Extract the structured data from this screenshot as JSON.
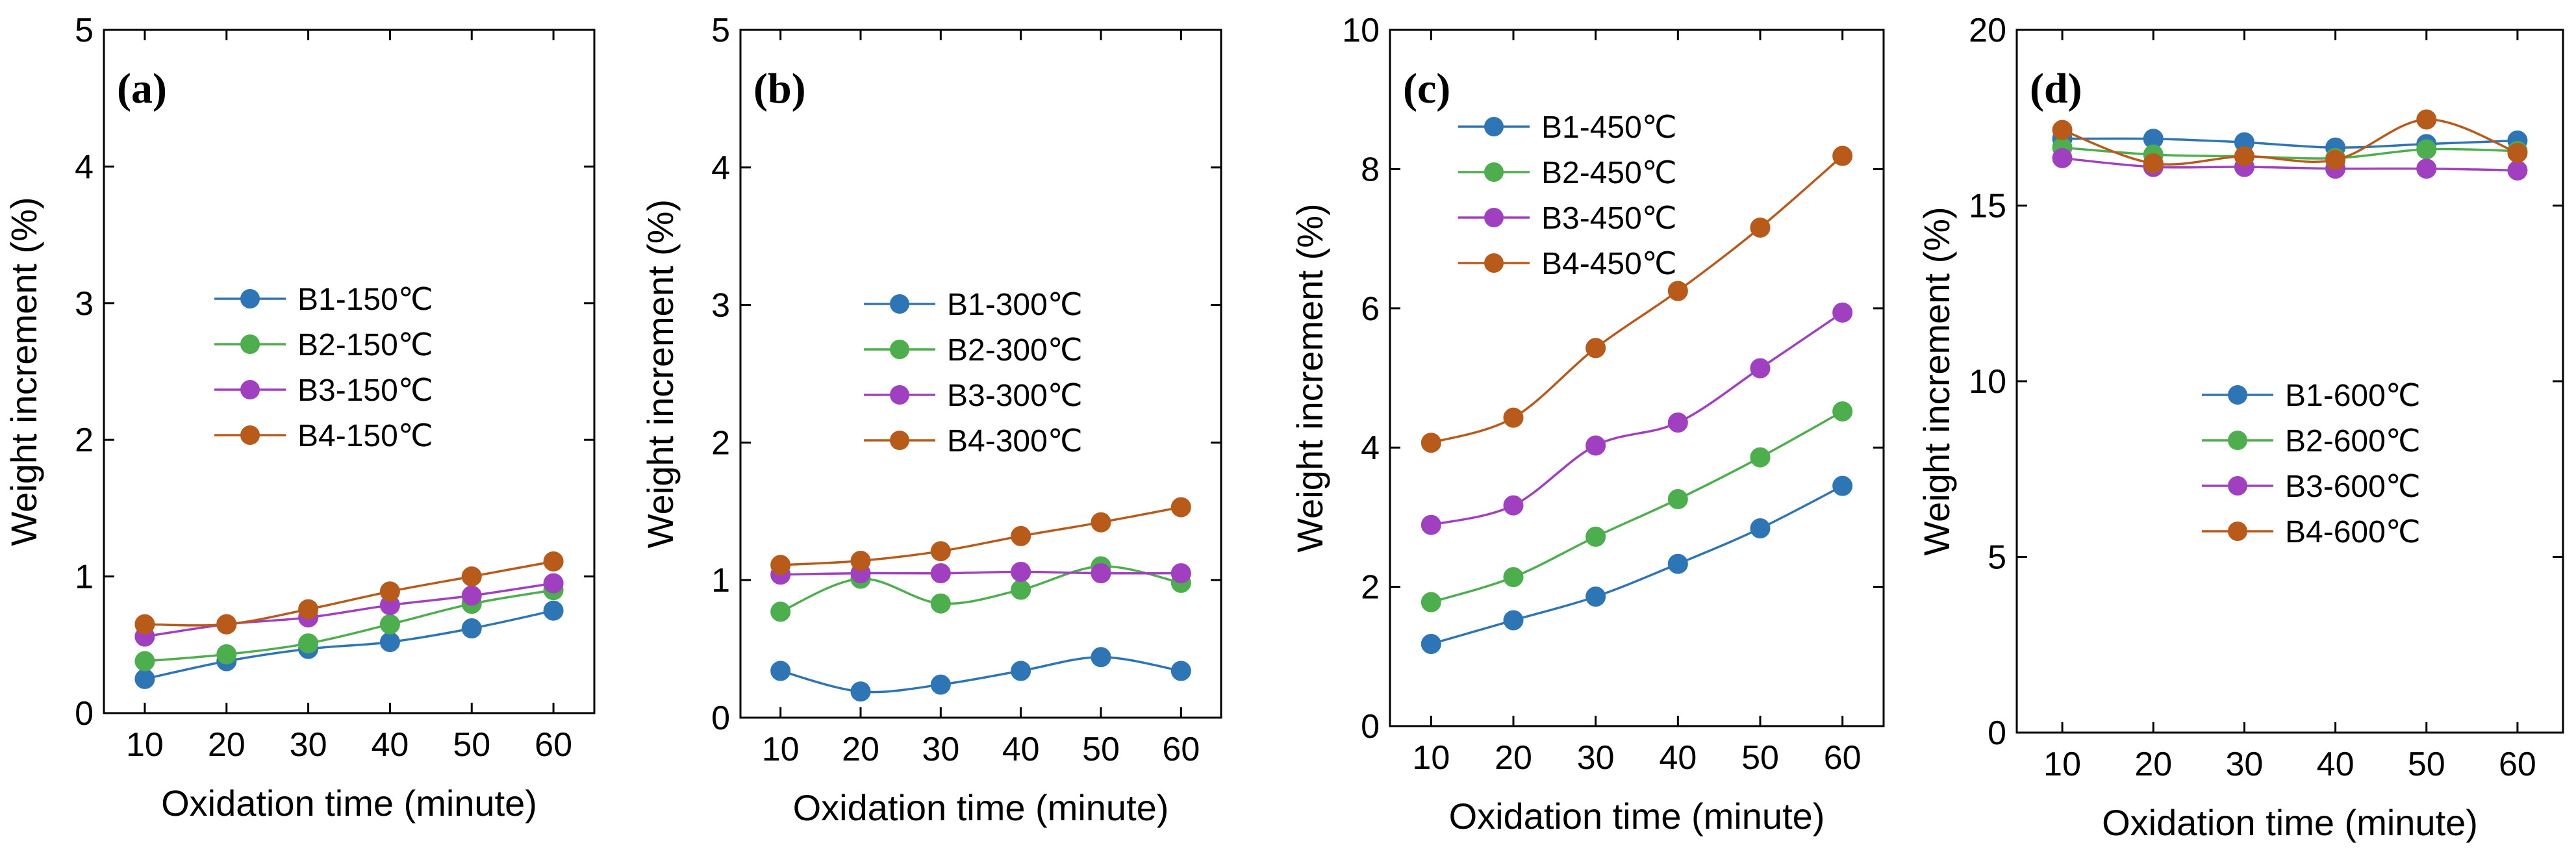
{
  "chart_data": [
    {
      "type": "line",
      "panel_label": "(a)",
      "xlabel": "Oxidation time (minute)",
      "ylabel": "Weight increment (%)",
      "x": [
        10,
        20,
        30,
        40,
        50,
        60
      ],
      "xticks": [
        "10",
        "20",
        "30",
        "40",
        "50",
        "60"
      ],
      "xlim": [
        5,
        65
      ],
      "ylim": [
        0,
        5
      ],
      "yticks": [
        "0",
        "1",
        "2",
        "3",
        "4",
        "5"
      ],
      "legend_position": "center",
      "series": [
        {
          "name": "B1-150℃",
          "color": "#2e75b6",
          "values": [
            0.25,
            0.38,
            0.47,
            0.52,
            0.62,
            0.75
          ]
        },
        {
          "name": "B2-150℃",
          "color": "#4cae4c",
          "values": [
            0.38,
            0.43,
            0.51,
            0.65,
            0.8,
            0.9
          ]
        },
        {
          "name": "B3-150℃",
          "color": "#a040c0",
          "values": [
            0.56,
            0.65,
            0.7,
            0.79,
            0.86,
            0.95
          ]
        },
        {
          "name": "B4-150℃",
          "color": "#b85a1a",
          "values": [
            0.65,
            0.65,
            0.76,
            0.89,
            1.0,
            1.11
          ]
        }
      ]
    },
    {
      "type": "line",
      "panel_label": "(b)",
      "xlabel": "Oxidation time (minute)",
      "ylabel": "Weight increment (%)",
      "x": [
        10,
        20,
        30,
        40,
        50,
        60
      ],
      "xticks": [
        "10",
        "20",
        "30",
        "40",
        "50",
        "60"
      ],
      "xlim": [
        5,
        65
      ],
      "ylim": [
        0,
        5
      ],
      "yticks": [
        "0",
        "1",
        "2",
        "3",
        "4",
        "5"
      ],
      "legend_position": "center",
      "series": [
        {
          "name": "B1-300℃",
          "color": "#2e75b6",
          "values": [
            0.34,
            0.19,
            0.24,
            0.34,
            0.44,
            0.34
          ]
        },
        {
          "name": "B2-300℃",
          "color": "#4cae4c",
          "values": [
            0.77,
            1.01,
            0.83,
            0.93,
            1.1,
            0.98
          ]
        },
        {
          "name": "B3-300℃",
          "color": "#a040c0",
          "values": [
            1.04,
            1.05,
            1.05,
            1.06,
            1.05,
            1.05
          ]
        },
        {
          "name": "B4-300℃",
          "color": "#b85a1a",
          "values": [
            1.11,
            1.14,
            1.21,
            1.32,
            1.42,
            1.53
          ]
        }
      ]
    },
    {
      "type": "line",
      "panel_label": "(c)",
      "xlabel": "Oxidation time (minute)",
      "ylabel": "Weight increment (%)",
      "x": [
        10,
        20,
        30,
        40,
        50,
        60
      ],
      "xticks": [
        "10",
        "20",
        "30",
        "40",
        "50",
        "60"
      ],
      "xlim": [
        5,
        65
      ],
      "ylim": [
        0,
        10
      ],
      "yticks": [
        "0",
        "2",
        "4",
        "6",
        "8",
        "10"
      ],
      "legend_position": "top-left",
      "series": [
        {
          "name": "B1-450℃",
          "color": "#2e75b6",
          "values": [
            1.18,
            1.52,
            1.86,
            2.33,
            2.84,
            3.45
          ]
        },
        {
          "name": "B2-450℃",
          "color": "#4cae4c",
          "values": [
            1.78,
            2.14,
            2.72,
            3.26,
            3.86,
            4.52
          ]
        },
        {
          "name": "B3-450℃",
          "color": "#a040c0",
          "values": [
            2.89,
            3.17,
            4.03,
            4.36,
            5.14,
            5.94
          ]
        },
        {
          "name": "B4-450℃",
          "color": "#b85a1a",
          "values": [
            4.07,
            4.43,
            5.43,
            6.25,
            7.16,
            8.19
          ]
        }
      ]
    },
    {
      "type": "line",
      "panel_label": "(d)",
      "xlabel": "Oxidation time (minute)",
      "ylabel": "Weight increment (%)",
      "x": [
        10,
        20,
        30,
        40,
        50,
        60
      ],
      "xticks": [
        "10",
        "20",
        "30",
        "40",
        "50",
        "60"
      ],
      "xlim": [
        5,
        65
      ],
      "ylim": [
        0,
        20
      ],
      "yticks": [
        "0",
        "5",
        "10",
        "15",
        "20"
      ],
      "legend_position": "center",
      "series": [
        {
          "name": "B1-600℃",
          "color": "#2e75b6",
          "values": [
            16.9,
            16.9,
            16.8,
            16.65,
            16.75,
            16.85
          ]
        },
        {
          "name": "B2-600℃",
          "color": "#4cae4c",
          "values": [
            16.65,
            16.45,
            16.4,
            16.35,
            16.6,
            16.55
          ]
        },
        {
          "name": "B3-600℃",
          "color": "#a040c0",
          "values": [
            16.35,
            16.1,
            16.1,
            16.05,
            16.05,
            16.0
          ]
        },
        {
          "name": "B4-600℃",
          "color": "#b85a1a",
          "values": [
            17.15,
            16.2,
            16.4,
            16.3,
            17.45,
            16.5
          ]
        }
      ]
    }
  ]
}
